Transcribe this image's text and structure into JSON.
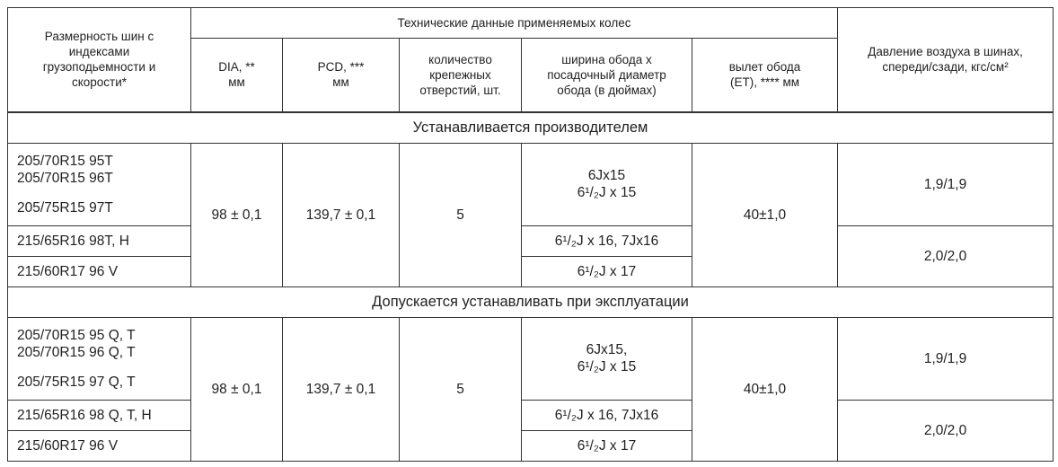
{
  "header": {
    "tire_size": "Размерность шин с индексами грузоподьемности и скорости*",
    "wheel_group": "Технические данные применяемых колес",
    "dia": "DIA, ** мм",
    "pcd": "PCD, *** мм",
    "bolt_count": "количество крепежных отверстий, шт.",
    "rim_size": "ширина обода х посадочный диаметр обода (в дюймах)",
    "offset": "вылет обода (ET), **** мм",
    "pressure": "Давление воздуха в шинах, спереди/сзади, кгс/см²"
  },
  "sections": [
    {
      "title": "Устанавливается производителем",
      "tires": [
        "205/70R15 95T",
        "205/70R15 96T",
        "205/75R15 97T",
        "215/65R16 98T, H",
        "215/60R17 96 V"
      ],
      "dia": "98 ± 0,1",
      "pcd": "139,7 ± 0,1",
      "bolts": "5",
      "rims": [
        "6Jx15",
        "6¹/₂J x 15",
        "6¹/₂J x 16, 7Jx16",
        "6¹/₂J x 17"
      ],
      "offset": "40±1,0",
      "pressures": [
        "1,9/1,9",
        "2,0/2,0"
      ]
    },
    {
      "title": "Допускается устанавливать при эксплуатации",
      "tires": [
        "205/70R15 95 Q, T",
        "205/70R15 96 Q, T",
        "205/75R15 97 Q, T",
        "215/65R16 98 Q, T, H",
        "215/60R17 96 V"
      ],
      "dia": "98 ± 0,1",
      "pcd": "139,7 ± 0,1",
      "bolts": "5",
      "rims": [
        "6Jx15,",
        "6¹/₂J x 15",
        "6¹/₂J x 16, 7Jx16",
        "6¹/₂J x 17"
      ],
      "offset": "40±1,0",
      "pressures": [
        "1,9/1,9",
        "2,0/2,0"
      ]
    }
  ]
}
